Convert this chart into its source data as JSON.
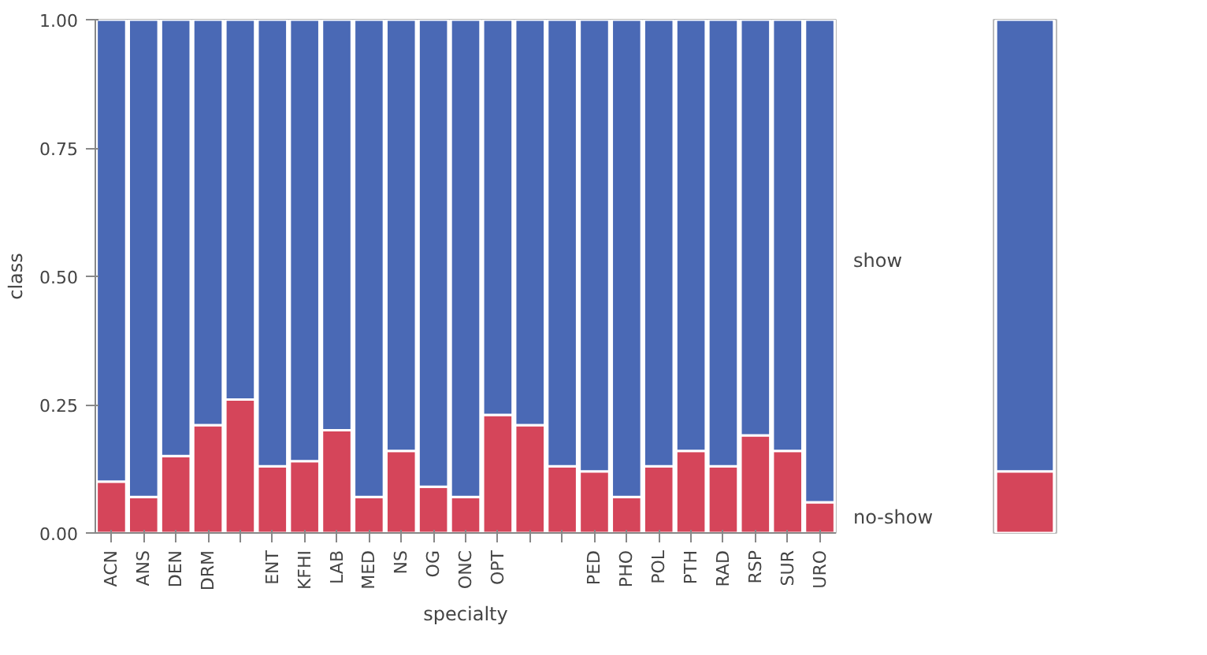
{
  "chart_data": [
    {
      "type": "bar",
      "stacked": true,
      "xlabel": "specialty",
      "ylabel": "class",
      "categories": [
        "ACN",
        "ANS",
        "DEN",
        "DRM",
        null,
        "ENT",
        "KFHI",
        "LAB",
        "MED",
        "NS",
        "OG",
        "ONC",
        "OPT",
        null,
        null,
        "PED",
        "PHO",
        "POL",
        "PTH",
        "RAD",
        "RSP",
        "SUR",
        "URO"
      ],
      "series": [
        {
          "name": "no-show",
          "color": "#d5455a",
          "values": [
            0.1,
            0.07,
            0.15,
            0.21,
            0.26,
            0.13,
            0.14,
            0.2,
            0.07,
            0.16,
            0.09,
            0.07,
            0.23,
            0.21,
            0.13,
            0.12,
            0.07,
            0.13,
            0.16,
            0.13,
            0.19,
            0.16,
            0.06
          ]
        },
        {
          "name": "show",
          "color": "#4a69b5",
          "values": [
            0.9,
            0.93,
            0.85,
            0.79,
            0.74,
            0.87,
            0.86,
            0.8,
            0.93,
            0.84,
            0.91,
            0.93,
            0.77,
            0.79,
            0.87,
            0.88,
            0.93,
            0.87,
            0.84,
            0.87,
            0.81,
            0.84,
            0.94
          ]
        }
      ],
      "ylim": [
        0,
        1
      ],
      "yticks": [
        {
          "value": 0,
          "label": "0.00"
        },
        {
          "value": 0.25,
          "label": "0.25"
        },
        {
          "value": 0.5,
          "label": "0.50"
        },
        {
          "value": 0.75,
          "label": "0.75"
        },
        {
          "value": 1,
          "label": "1.00"
        }
      ],
      "grid": false
    },
    {
      "type": "bar",
      "stacked": true,
      "categories": [
        null
      ],
      "series": [
        {
          "color": "#d5455a",
          "values": [
            0.12
          ]
        },
        {
          "color": "#4a69b5",
          "values": [
            0.88
          ]
        }
      ],
      "ylim": [
        0,
        1
      ],
      "tick_labels": false,
      "grid": false
    }
  ]
}
